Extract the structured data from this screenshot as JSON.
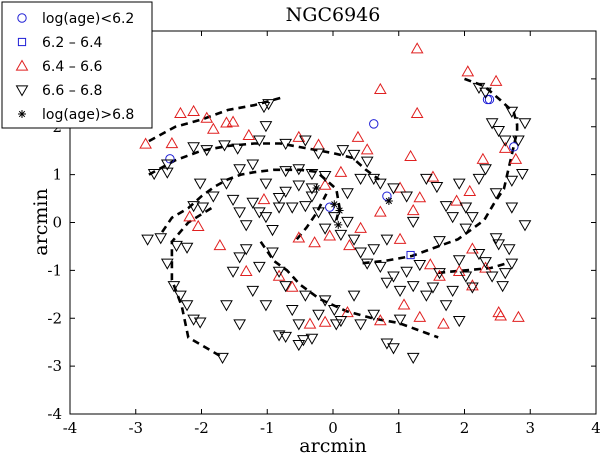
{
  "chart_data": {
    "type": "scatter",
    "title": "NGC6946",
    "xlabel": "arcmin",
    "ylabel": "arcmin",
    "xlim": [
      -4,
      4
    ],
    "ylim": [
      -4,
      4
    ],
    "xticks": [
      "-4",
      "-3",
      "-2",
      "-1",
      "0",
      "1",
      "2",
      "3",
      "4"
    ],
    "yticks": [
      "-4",
      "-3",
      "-2",
      "-1",
      "0",
      "1",
      "2",
      "3",
      "4"
    ],
    "legend": {
      "placement": "top-left",
      "entries": [
        {
          "label": "log(age)<6.2",
          "marker": "circle",
          "color": "#1f1fd6"
        },
        {
          "label": "6.2 – 6.4",
          "marker": "square",
          "color": "#1f1fd6"
        },
        {
          "label": "6.4 – 6.6",
          "marker": "triangle-up",
          "color": "#e02020"
        },
        {
          "label": "6.6 – 6.8",
          "marker": "triangle-down",
          "color": "#000000"
        },
        {
          "label": "log(age)>6.8",
          "marker": "star",
          "color": "#000000"
        }
      ]
    },
    "series": [
      {
        "name": "log(age)<6.2",
        "marker": "circle",
        "color": "#1f1fd6",
        "points": [
          [
            -2.48,
            1.33
          ],
          [
            0.62,
            2.06
          ],
          [
            0.82,
            0.55
          ],
          [
            -0.05,
            0.32
          ],
          [
            2.35,
            2.57
          ],
          [
            2.38,
            2.57
          ],
          [
            2.75,
            1.58
          ]
        ]
      },
      {
        "name": "6.2 – 6.4",
        "marker": "square",
        "color": "#1f1fd6",
        "points": [
          [
            1.18,
            -0.68
          ]
        ]
      },
      {
        "name": "6.4 – 6.6",
        "marker": "triangle-up",
        "color": "#e02020",
        "points": [
          [
            1.28,
            3.63
          ],
          [
            2.05,
            3.15
          ],
          [
            2.48,
            2.95
          ],
          [
            -2.85,
            1.64
          ],
          [
            -2.45,
            1.65
          ],
          [
            -2.32,
            2.28
          ],
          [
            -2.12,
            2.32
          ],
          [
            -1.92,
            2.18
          ],
          [
            -1.82,
            1.95
          ],
          [
            -1.62,
            2.08
          ],
          [
            -1.52,
            2.1
          ],
          [
            -1.28,
            1.82
          ],
          [
            -0.52,
            1.78
          ],
          [
            -0.22,
            1.62
          ],
          [
            0.12,
            1.05
          ],
          [
            0.38,
            1.78
          ],
          [
            0.72,
            2.78
          ],
          [
            1.18,
            1.38
          ],
          [
            1.32,
            0.52
          ],
          [
            1.52,
            0.95
          ],
          [
            1.88,
            0.45
          ],
          [
            2.08,
            0.65
          ],
          [
            2.28,
            1.32
          ],
          [
            2.62,
            1.55
          ],
          [
            2.78,
            1.32
          ],
          [
            -2.18,
            0.12
          ],
          [
            -2.05,
            -0.08
          ],
          [
            -1.72,
            -0.48
          ],
          [
            -1.32,
            -1.02
          ],
          [
            -1.05,
            0.48
          ],
          [
            -0.52,
            -0.32
          ],
          [
            -0.28,
            -0.42
          ],
          [
            -0.05,
            -0.28
          ],
          [
            0.25,
            -0.48
          ],
          [
            0.42,
            -0.12
          ],
          [
            0.72,
            0.22
          ],
          [
            1.02,
            -0.35
          ],
          [
            1.48,
            -0.88
          ],
          [
            1.62,
            -1.12
          ],
          [
            1.92,
            -1.02
          ],
          [
            2.12,
            -0.55
          ],
          [
            2.32,
            -0.95
          ],
          [
            2.12,
            -1.32
          ],
          [
            0.22,
            -1.88
          ],
          [
            0.72,
            -2.05
          ],
          [
            1.08,
            -1.72
          ],
          [
            1.32,
            -1.98
          ],
          [
            1.68,
            -2.12
          ],
          [
            -0.82,
            -1.12
          ],
          [
            -0.62,
            -1.35
          ],
          [
            -0.35,
            -2.12
          ],
          [
            -0.12,
            -2.08
          ],
          [
            2.52,
            -1.88
          ],
          [
            2.55,
            -1.95
          ],
          [
            2.82,
            -1.98
          ],
          [
            1.02,
            0.72
          ],
          [
            1.22,
            0.25
          ],
          [
            1.28,
            2.28
          ],
          [
            0.52,
            1.52
          ],
          [
            -0.12,
            0.78
          ]
        ]
      },
      {
        "name": "6.6 – 6.8",
        "marker": "triangle-down",
        "color": "#000000",
        "points": [
          [
            -2.52,
            1.22
          ],
          [
            -2.52,
            1.05
          ],
          [
            -2.72,
            1.02
          ],
          [
            -2.12,
            1.58
          ],
          [
            -1.92,
            1.52
          ],
          [
            -1.65,
            1.62
          ],
          [
            -1.45,
            1.55
          ],
          [
            -1.12,
            1.72
          ],
          [
            -1.05,
            2.42
          ],
          [
            -0.98,
            2.48
          ],
          [
            -1.02,
            2.02
          ],
          [
            -0.72,
            1.65
          ],
          [
            -0.42,
            1.72
          ],
          [
            -0.22,
            1.45
          ],
          [
            -0.32,
            1.02
          ],
          [
            -0.12,
            0.98
          ],
          [
            0.15,
            1.52
          ],
          [
            0.32,
            1.42
          ],
          [
            0.52,
            1.28
          ],
          [
            0.62,
            0.92
          ],
          [
            0.72,
            0.82
          ],
          [
            0.92,
            0.72
          ],
          [
            1.12,
            0.55
          ],
          [
            1.42,
            0.92
          ],
          [
            1.58,
            0.75
          ],
          [
            1.72,
            0.35
          ],
          [
            1.92,
            0.82
          ],
          [
            2.02,
            0.32
          ],
          [
            2.22,
            0.92
          ],
          [
            2.32,
            1.12
          ],
          [
            2.42,
            2.08
          ],
          [
            2.52,
            1.92
          ],
          [
            2.62,
            1.72
          ],
          [
            2.72,
            2.32
          ],
          [
            2.82,
            1.72
          ],
          [
            2.92,
            2.08
          ],
          [
            2.22,
            2.82
          ],
          [
            2.32,
            2.72
          ],
          [
            2.72,
            0.88
          ],
          [
            2.88,
            1.02
          ],
          [
            2.92,
            -0.05
          ],
          [
            2.68,
            -0.55
          ],
          [
            -2.82,
            -0.35
          ],
          [
            -2.62,
            -0.32
          ],
          [
            -2.52,
            -0.85
          ],
          [
            -2.38,
            -0.48
          ],
          [
            -2.22,
            -0.52
          ],
          [
            -2.12,
            0.35
          ],
          [
            -1.98,
            0.32
          ],
          [
            -1.82,
            0.55
          ],
          [
            -1.62,
            0.82
          ],
          [
            -1.52,
            0.48
          ],
          [
            -1.42,
            0.22
          ],
          [
            -1.32,
            -0.05
          ],
          [
            -1.22,
            0.42
          ],
          [
            -1.12,
            0.22
          ],
          [
            -1.02,
            0.12
          ],
          [
            -0.92,
            -0.15
          ],
          [
            -0.82,
            0.52
          ],
          [
            -0.72,
            0.65
          ],
          [
            -0.62,
            0.32
          ],
          [
            -0.52,
            0.78
          ],
          [
            -0.42,
            0.35
          ],
          [
            -0.32,
            0.55
          ],
          [
            -0.22,
            0.22
          ],
          [
            -0.12,
            -0.12
          ],
          [
            0.02,
            0.12
          ],
          [
            0.12,
            -0.25
          ],
          [
            0.22,
            0.02
          ],
          [
            0.32,
            -0.35
          ],
          [
            0.42,
            -0.62
          ],
          [
            0.52,
            -0.85
          ],
          [
            0.62,
            -0.55
          ],
          [
            0.72,
            -0.92
          ],
          [
            0.82,
            -1.25
          ],
          [
            0.92,
            -1.12
          ],
          [
            1.02,
            -1.42
          ],
          [
            1.12,
            -1.02
          ],
          [
            1.22,
            -1.32
          ],
          [
            1.32,
            -0.88
          ],
          [
            1.42,
            -1.52
          ],
          [
            1.52,
            -1.35
          ],
          [
            1.62,
            -1.05
          ],
          [
            1.72,
            -1.72
          ],
          [
            1.82,
            -1.42
          ],
          [
            1.92,
            -0.78
          ],
          [
            2.02,
            -1.12
          ],
          [
            2.12,
            -1.35
          ],
          [
            2.22,
            -0.65
          ],
          [
            2.32,
            -0.82
          ],
          [
            2.42,
            -1.12
          ],
          [
            2.52,
            -0.45
          ],
          [
            2.62,
            -1.05
          ],
          [
            2.72,
            -0.85
          ],
          [
            -1.62,
            -1.72
          ],
          [
            -1.52,
            -1.02
          ],
          [
            -1.42,
            -0.72
          ],
          [
            -1.32,
            -0.55
          ],
          [
            -1.22,
            -1.42
          ],
          [
            -1.12,
            -0.92
          ],
          [
            -1.02,
            -1.72
          ],
          [
            -0.92,
            -0.62
          ],
          [
            -0.82,
            -1.02
          ],
          [
            -0.72,
            -1.32
          ],
          [
            -0.62,
            -1.82
          ],
          [
            -0.52,
            -2.12
          ],
          [
            -0.42,
            -1.52
          ],
          [
            -0.32,
            -2.42
          ],
          [
            -0.22,
            -1.92
          ],
          [
            -0.12,
            -1.62
          ],
          [
            0.02,
            -1.82
          ],
          [
            0.12,
            -2.05
          ],
          [
            0.32,
            -1.52
          ],
          [
            0.42,
            -2.12
          ],
          [
            0.62,
            -1.92
          ],
          [
            0.82,
            -2.52
          ],
          [
            0.92,
            -2.62
          ],
          [
            1.02,
            -2.02
          ],
          [
            1.22,
            -2.82
          ],
          [
            1.92,
            -2.05
          ],
          [
            2.48,
            -0.32
          ],
          [
            2.58,
            -1.32
          ],
          [
            -2.42,
            -1.32
          ],
          [
            -2.32,
            -1.52
          ],
          [
            -2.22,
            -1.72
          ],
          [
            -2.12,
            -2.02
          ],
          [
            -2.02,
            -2.08
          ],
          [
            -1.68,
            -2.82
          ],
          [
            -1.42,
            -2.12
          ],
          [
            -0.82,
            -2.35
          ],
          [
            -0.72,
            -2.38
          ],
          [
            -0.52,
            -2.55
          ],
          [
            -0.45,
            -2.45
          ],
          [
            0.05,
            -2.12
          ],
          [
            0.82,
            -0.35
          ],
          [
            1.22,
            0.02
          ],
          [
            1.62,
            -0.38
          ],
          [
            1.82,
            0.12
          ],
          [
            2.02,
            -0.12
          ],
          [
            2.12,
            0.12
          ],
          [
            -0.72,
            1.08
          ],
          [
            -0.52,
            1.12
          ],
          [
            -0.32,
            0.72
          ],
          [
            0.22,
            0.62
          ],
          [
            0.42,
            0.92
          ],
          [
            -1.22,
            1.22
          ],
          [
            -1.42,
            1.12
          ],
          [
            -2.02,
            0.82
          ],
          [
            -1.02,
            0.82
          ],
          [
            -0.82,
            0.32
          ],
          [
            2.48,
            0.62
          ],
          [
            2.72,
            0.32
          ]
        ]
      },
      {
        "name": "log(age)>6.8",
        "marker": "star",
        "color": "#000000",
        "points": [
          [
            -0.25,
            0.72
          ],
          [
            0.02,
            0.38
          ],
          [
            0.1,
            0.25
          ],
          [
            0.08,
            -0.05
          ],
          [
            0.85,
            0.45
          ]
        ]
      }
    ],
    "spiral_tracks": [
      [
        [
          -2.8,
          1.0
        ],
        [
          -2.4,
          1.3
        ],
        [
          -2.0,
          1.5
        ],
        [
          -1.6,
          1.6
        ],
        [
          -1.2,
          1.65
        ],
        [
          -0.8,
          1.65
        ],
        [
          -0.4,
          1.55
        ],
        [
          0.0,
          1.45
        ],
        [
          0.3,
          1.35
        ],
        [
          0.5,
          1.1
        ],
        [
          0.7,
          0.9
        ]
      ],
      [
        [
          -2.8,
          1.7
        ],
        [
          -2.4,
          2.0
        ],
        [
          -2.0,
          2.15
        ],
        [
          -1.6,
          2.35
        ],
        [
          -1.2,
          2.45
        ],
        [
          -0.8,
          2.6
        ]
      ],
      [
        [
          -2.6,
          -0.2
        ],
        [
          -2.45,
          0.1
        ],
        [
          -2.2,
          0.3
        ],
        [
          -2.0,
          0.55
        ],
        [
          -1.8,
          0.75
        ],
        [
          -1.6,
          0.9
        ],
        [
          -1.4,
          1.0
        ],
        [
          -1.2,
          1.05
        ],
        [
          -0.9,
          1.1
        ],
        [
          -0.5,
          1.1
        ],
        [
          -0.2,
          1.05
        ]
      ],
      [
        [
          -1.85,
          0.3
        ],
        [
          -2.2,
          0.0
        ],
        [
          -2.45,
          -0.4
        ],
        [
          -2.45,
          -1.2
        ],
        [
          -2.3,
          -1.75
        ],
        [
          -2.2,
          -2.4
        ],
        [
          -1.95,
          -2.6
        ],
        [
          -1.7,
          -2.8
        ]
      ],
      [
        [
          -1.1,
          -0.4
        ],
        [
          -0.9,
          -0.8
        ],
        [
          -0.7,
          -1.0
        ],
        [
          -0.5,
          -1.3
        ],
        [
          -0.2,
          -1.6
        ],
        [
          0.2,
          -1.85
        ],
        [
          0.6,
          -2.0
        ],
        [
          1.0,
          -2.1
        ],
        [
          1.4,
          -2.3
        ],
        [
          1.6,
          -2.4
        ]
      ],
      [
        [
          0.45,
          -0.85
        ],
        [
          0.8,
          -0.8
        ],
        [
          1.2,
          -0.7
        ],
        [
          1.6,
          -0.5
        ],
        [
          1.9,
          -0.35
        ],
        [
          2.1,
          -0.15
        ],
        [
          2.3,
          0.05
        ],
        [
          2.45,
          0.4
        ],
        [
          2.6,
          0.7
        ],
        [
          2.65,
          1.0
        ],
        [
          2.7,
          1.3
        ],
        [
          2.75,
          1.6
        ],
        [
          2.8,
          1.9
        ],
        [
          2.8,
          2.2
        ]
      ],
      [
        [
          2.0,
          3.0
        ],
        [
          2.3,
          2.85
        ],
        [
          2.55,
          2.55
        ],
        [
          2.75,
          2.3
        ],
        [
          2.8,
          2.05
        ]
      ],
      [
        [
          1.6,
          -1.05
        ],
        [
          2.0,
          -1.0
        ],
        [
          2.4,
          -0.95
        ],
        [
          2.65,
          -0.85
        ]
      ],
      [
        [
          -0.2,
          1.0
        ],
        [
          0.05,
          0.7
        ],
        [
          0.1,
          0.3
        ],
        [
          0.05,
          0.05
        ]
      ],
      [
        [
          -0.55,
          -0.35
        ],
        [
          -0.4,
          -0.1
        ],
        [
          -0.25,
          0.2
        ],
        [
          -0.1,
          0.6
        ]
      ]
    ]
  }
}
